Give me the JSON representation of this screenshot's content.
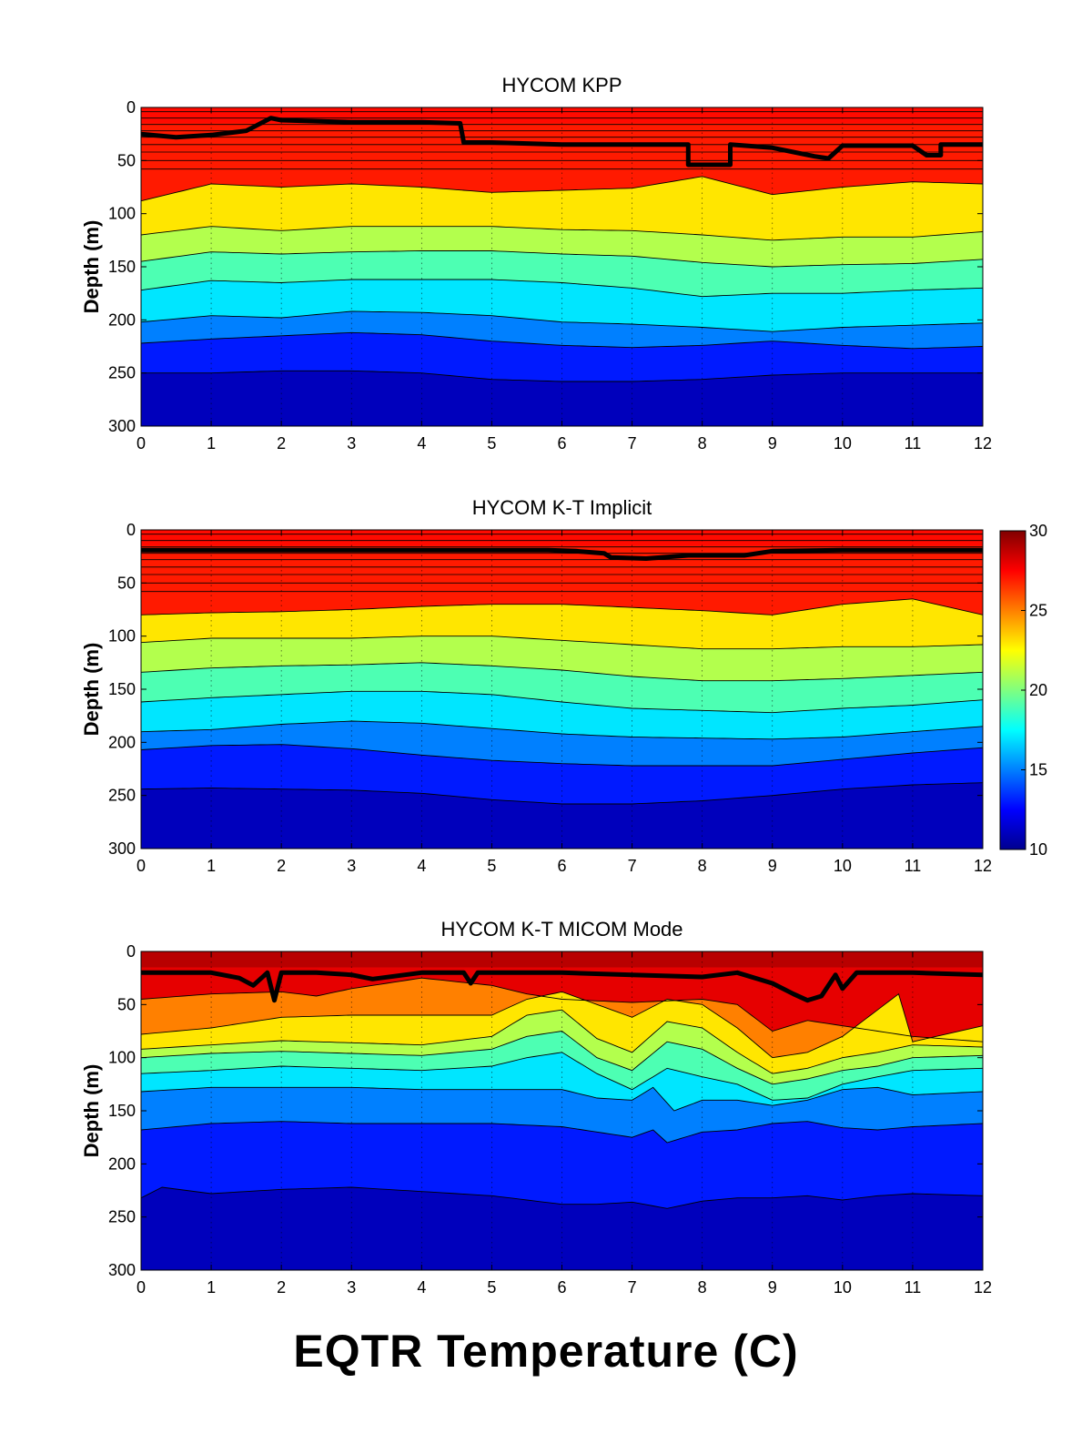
{
  "figure_title": "EQTR Temperature (C)",
  "colormap": [
    "#00008f",
    "#0000ff",
    "#00ffff",
    "#ffff00",
    "#ff0000",
    "#800000"
  ],
  "colors": {
    "mld_line": "#000000",
    "contour_line": "#000000",
    "grid": "#000000"
  },
  "colorbar": {
    "ticks": [
      "30",
      "25",
      "20",
      "15",
      "10"
    ],
    "min": 10,
    "max": 30
  },
  "chart_data": [
    {
      "type": "heatmap",
      "title": "HYCOM KPP",
      "xlabel": "",
      "ylabel": "Depth (m)",
      "xlim": [
        0,
        12
      ],
      "ylim": [
        300,
        0
      ],
      "x_ticks": [
        "0",
        "1",
        "2",
        "3",
        "4",
        "5",
        "6",
        "7",
        "8",
        "9",
        "10",
        "11",
        "12"
      ],
      "y_ticks": [
        "0",
        "50",
        "100",
        "150",
        "200",
        "250",
        "300"
      ],
      "grid": "vertical dotted",
      "fixed_layer_depths": [
        4,
        10,
        16,
        22,
        28,
        35,
        42,
        50,
        58
      ],
      "isotherm_depths": [
        {
          "temperature": 24,
          "x": [
            0,
            1,
            2,
            3,
            4,
            5,
            6,
            7,
            8,
            9,
            10,
            11,
            12
          ],
          "depth": [
            88,
            72,
            75,
            72,
            75,
            80,
            78,
            76,
            65,
            82,
            75,
            70,
            72
          ]
        },
        {
          "temperature": 22,
          "x": [
            0,
            1,
            2,
            3,
            4,
            5,
            6,
            7,
            8,
            9,
            10,
            11,
            12
          ],
          "depth": [
            120,
            112,
            116,
            112,
            112,
            112,
            115,
            116,
            120,
            125,
            122,
            122,
            117
          ]
        },
        {
          "temperature": 20,
          "x": [
            0,
            1,
            2,
            3,
            4,
            5,
            6,
            7,
            8,
            9,
            10,
            11,
            12
          ],
          "depth": [
            145,
            136,
            138,
            136,
            135,
            135,
            138,
            140,
            146,
            150,
            148,
            147,
            143
          ]
        },
        {
          "temperature": 18,
          "x": [
            0,
            1,
            2,
            3,
            4,
            5,
            6,
            7,
            8,
            9,
            10,
            11,
            12
          ],
          "depth": [
            172,
            163,
            165,
            162,
            162,
            162,
            165,
            170,
            178,
            175,
            175,
            172,
            170
          ]
        },
        {
          "temperature": 16,
          "x": [
            0,
            1,
            2,
            3,
            4,
            5,
            6,
            7,
            8,
            9,
            10,
            11,
            12
          ],
          "depth": [
            202,
            196,
            198,
            192,
            193,
            196,
            202,
            204,
            207,
            211,
            207,
            205,
            203
          ]
        },
        {
          "temperature": 14,
          "x": [
            0,
            1,
            2,
            3,
            4,
            5,
            6,
            7,
            8,
            9,
            10,
            11,
            12
          ],
          "depth": [
            222,
            218,
            215,
            212,
            214,
            220,
            224,
            226,
            224,
            220,
            224,
            227,
            225
          ]
        },
        {
          "temperature": 12,
          "x": [
            0,
            1,
            2,
            3,
            4,
            5,
            6,
            7,
            8,
            9,
            10,
            11,
            12
          ],
          "depth": [
            250,
            250,
            248,
            248,
            250,
            256,
            258,
            258,
            256,
            252,
            250,
            250,
            250
          ]
        }
      ],
      "mixed_layer_depth": {
        "x": [
          0,
          0.5,
          1,
          1.5,
          1.85,
          2,
          3,
          4,
          4.55,
          4.6,
          5,
          6,
          7,
          7.8,
          7.8,
          8.4,
          8.4,
          9,
          9.6,
          9.8,
          10,
          11,
          11.2,
          11.4,
          11.4,
          12
        ],
        "depth": [
          25,
          28,
          26,
          22,
          10,
          12,
          14,
          14,
          15,
          33,
          33,
          35,
          35,
          35,
          54,
          54,
          35,
          38,
          46,
          48,
          36,
          36,
          45,
          45,
          35,
          35
        ]
      },
      "surface_temperature_range": [
        26,
        28
      ]
    },
    {
      "type": "heatmap",
      "title": "HYCOM K-T Implicit",
      "xlabel": "",
      "ylabel": "Depth (m)",
      "xlim": [
        0,
        12
      ],
      "ylim": [
        300,
        0
      ],
      "x_ticks": [
        "0",
        "1",
        "2",
        "3",
        "4",
        "5",
        "6",
        "7",
        "8",
        "9",
        "10",
        "11",
        "12"
      ],
      "y_ticks": [
        "0",
        "50",
        "100",
        "150",
        "200",
        "250",
        "300"
      ],
      "grid": "vertical dotted",
      "fixed_layer_depths": [
        4,
        10,
        16,
        22,
        28,
        35,
        42,
        50,
        58
      ],
      "isotherm_depths": [
        {
          "temperature": 24,
          "x": [
            0,
            1,
            2,
            3,
            4,
            5,
            6,
            7,
            8,
            9,
            10,
            11,
            12
          ],
          "depth": [
            80,
            78,
            77,
            75,
            72,
            70,
            70,
            73,
            76,
            80,
            70,
            65,
            80
          ]
        },
        {
          "temperature": 22,
          "x": [
            0,
            1,
            2,
            3,
            4,
            5,
            6,
            7,
            8,
            9,
            10,
            11,
            12
          ],
          "depth": [
            106,
            102,
            102,
            102,
            100,
            100,
            104,
            108,
            112,
            112,
            110,
            110,
            108
          ]
        },
        {
          "temperature": 20,
          "x": [
            0,
            1,
            2,
            3,
            4,
            5,
            6,
            7,
            8,
            9,
            10,
            11,
            12
          ],
          "depth": [
            134,
            130,
            128,
            127,
            125,
            128,
            132,
            138,
            142,
            142,
            140,
            137,
            134
          ]
        },
        {
          "temperature": 18,
          "x": [
            0,
            1,
            2,
            3,
            4,
            5,
            6,
            7,
            8,
            9,
            10,
            11,
            12
          ],
          "depth": [
            162,
            158,
            155,
            152,
            152,
            155,
            162,
            168,
            170,
            172,
            168,
            165,
            160
          ]
        },
        {
          "temperature": 16,
          "x": [
            0,
            1,
            2,
            3,
            4,
            5,
            6,
            7,
            8,
            9,
            10,
            11,
            12
          ],
          "depth": [
            190,
            188,
            183,
            180,
            182,
            187,
            192,
            195,
            196,
            197,
            195,
            190,
            185
          ]
        },
        {
          "temperature": 14,
          "x": [
            0,
            1,
            2,
            3,
            4,
            5,
            6,
            7,
            8,
            9,
            10,
            11,
            12
          ],
          "depth": [
            207,
            203,
            202,
            206,
            212,
            217,
            220,
            222,
            222,
            222,
            216,
            210,
            205
          ]
        },
        {
          "temperature": 12,
          "x": [
            0,
            1,
            2,
            3,
            4,
            5,
            6,
            7,
            8,
            9,
            10,
            11,
            12
          ],
          "depth": [
            244,
            243,
            244,
            245,
            248,
            254,
            258,
            258,
            255,
            250,
            244,
            240,
            238
          ]
        }
      ],
      "mixed_layer_depth": {
        "x": [
          0,
          1,
          2,
          3,
          4,
          5,
          5.8,
          6.2,
          6.6,
          6.7,
          7.2,
          7.8,
          8.6,
          9,
          10,
          11,
          12
        ],
        "depth": [
          19,
          19,
          19,
          19,
          19,
          19,
          19,
          20,
          22,
          26,
          27,
          24,
          24,
          20,
          19,
          19,
          19
        ]
      },
      "surface_temperature_range": [
        26,
        28
      ]
    },
    {
      "type": "heatmap",
      "title": "HYCOM K-T MICOM Mode",
      "xlabel": "",
      "ylabel": "Depth (m)",
      "xlim": [
        0,
        12
      ],
      "ylim": [
        300,
        0
      ],
      "x_ticks": [
        "0",
        "1",
        "2",
        "3",
        "4",
        "5",
        "6",
        "7",
        "8",
        "9",
        "10",
        "11",
        "12"
      ],
      "y_ticks": [
        "0",
        "50",
        "100",
        "150",
        "200",
        "250",
        "300"
      ],
      "grid": "vertical dotted",
      "fixed_layer_depths": [],
      "isotherm_depths": [
        {
          "temperature": 26,
          "x": [
            0,
            1,
            2,
            2.5,
            3,
            4,
            5,
            5.5,
            6,
            7,
            8,
            8.5,
            9,
            9.5,
            10,
            10.5,
            11,
            12
          ],
          "depth": [
            45,
            40,
            38,
            42,
            35,
            25,
            32,
            40,
            45,
            48,
            45,
            50,
            75,
            65,
            70,
            75,
            80,
            85
          ]
        },
        {
          "temperature": 24,
          "x": [
            0,
            1,
            2,
            3,
            4,
            5,
            5.5,
            6,
            6.5,
            7,
            7.5,
            8,
            8.5,
            9,
            9.5,
            10,
            10.5,
            10.8,
            11,
            12
          ],
          "depth": [
            78,
            72,
            62,
            60,
            60,
            60,
            45,
            38,
            50,
            62,
            45,
            50,
            72,
            100,
            95,
            80,
            55,
            40,
            85,
            70
          ]
        },
        {
          "temperature": 22,
          "x": [
            0,
            1,
            2,
            3,
            4,
            5,
            5.5,
            6,
            6.5,
            7,
            7.5,
            8,
            8.5,
            9,
            9.5,
            10,
            10.5,
            11,
            12
          ],
          "depth": [
            92,
            88,
            84,
            86,
            88,
            80,
            60,
            55,
            82,
            95,
            66,
            72,
            95,
            115,
            110,
            100,
            95,
            88,
            90
          ]
        },
        {
          "temperature": 20,
          "x": [
            0,
            1,
            2,
            3,
            4,
            5,
            5.5,
            6,
            6.5,
            7,
            7.5,
            8,
            8.5,
            9,
            9.5,
            10,
            10.5,
            11,
            12
          ],
          "depth": [
            100,
            96,
            94,
            96,
            98,
            92,
            80,
            75,
            100,
            112,
            85,
            92,
            110,
            125,
            120,
            112,
            108,
            100,
            98
          ]
        },
        {
          "temperature": 18,
          "x": [
            0,
            1,
            2,
            3,
            4,
            5,
            5.5,
            6,
            6.5,
            7,
            7.5,
            8,
            8.5,
            9,
            9.5,
            10,
            10.5,
            11,
            12
          ],
          "depth": [
            115,
            112,
            108,
            110,
            112,
            108,
            100,
            95,
            115,
            130,
            110,
            118,
            125,
            140,
            138,
            125,
            118,
            112,
            110
          ]
        },
        {
          "temperature": 16,
          "x": [
            0,
            1,
            2,
            3,
            4,
            5,
            6,
            6.5,
            7,
            7.3,
            7.6,
            8,
            8.5,
            9,
            9.5,
            10,
            10.5,
            11,
            12
          ],
          "depth": [
            132,
            128,
            128,
            128,
            130,
            130,
            130,
            138,
            140,
            128,
            150,
            140,
            140,
            145,
            140,
            130,
            128,
            135,
            132
          ]
        },
        {
          "temperature": 14,
          "x": [
            0,
            1,
            2,
            3,
            4,
            5,
            6,
            6.5,
            7,
            7.3,
            7.5,
            8,
            8.5,
            9,
            9.5,
            10,
            10.5,
            11,
            12
          ],
          "depth": [
            168,
            162,
            160,
            162,
            162,
            162,
            165,
            170,
            175,
            168,
            180,
            170,
            168,
            162,
            160,
            166,
            168,
            165,
            162
          ]
        },
        {
          "temperature": 12,
          "x": [
            0,
            0.3,
            1,
            2,
            3,
            4,
            5,
            6,
            6.5,
            7,
            7.5,
            8,
            8.5,
            9,
            9.5,
            10,
            10.5,
            11,
            12
          ],
          "depth": [
            232,
            222,
            228,
            224,
            222,
            226,
            230,
            238,
            238,
            236,
            242,
            235,
            232,
            232,
            230,
            234,
            230,
            228,
            230
          ]
        }
      ],
      "mixed_layer_depth": {
        "x": [
          0,
          1,
          1.4,
          1.6,
          1.8,
          1.9,
          2.0,
          2.5,
          3,
          3.3,
          4,
          4.6,
          4.7,
          4.8,
          5,
          6,
          7,
          8,
          8.5,
          9,
          9.3,
          9.5,
          9.7,
          9.9,
          10.0,
          10.2,
          11,
          12
        ],
        "depth": [
          20,
          20,
          25,
          32,
          20,
          46,
          20,
          20,
          22,
          26,
          20,
          20,
          30,
          20,
          20,
          20,
          22,
          24,
          20,
          30,
          40,
          46,
          42,
          22,
          35,
          20,
          20,
          22
        ]
      },
      "surface_temperature_range": [
        26,
        30
      ]
    }
  ]
}
